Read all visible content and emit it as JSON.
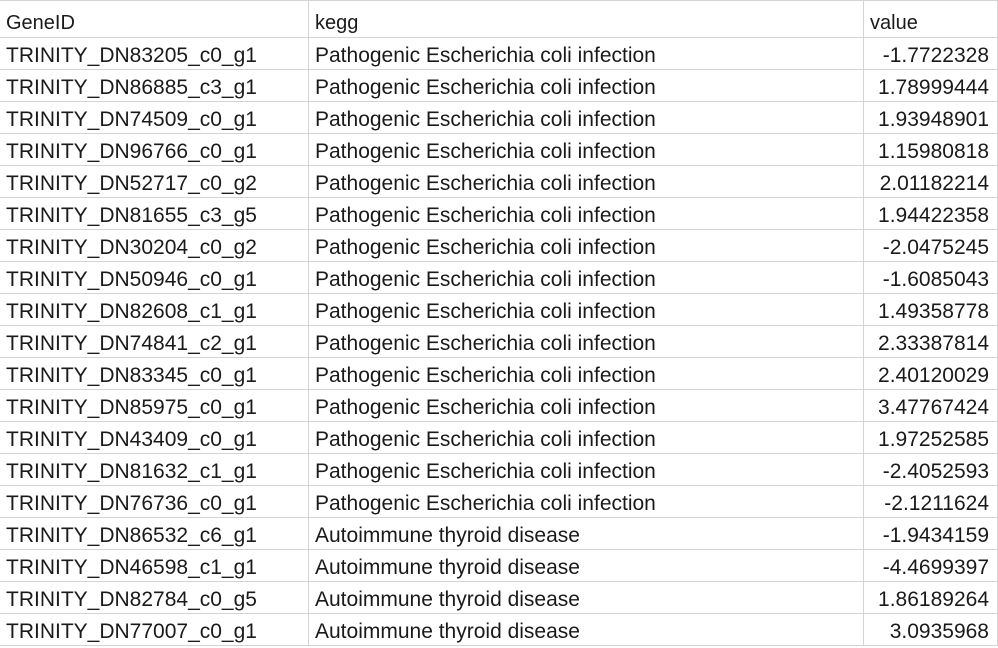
{
  "headers": {
    "gene_id": "GeneID",
    "kegg": "kegg",
    "value": "value"
  },
  "rows": [
    {
      "gene_id": "TRINITY_DN83205_c0_g1",
      "kegg": "Pathogenic Escherichia coli infection",
      "value": "-1.7722328"
    },
    {
      "gene_id": "TRINITY_DN86885_c3_g1",
      "kegg": "Pathogenic Escherichia coli infection",
      "value": "1.78999444"
    },
    {
      "gene_id": "TRINITY_DN74509_c0_g1",
      "kegg": "Pathogenic Escherichia coli infection",
      "value": "1.93948901"
    },
    {
      "gene_id": "TRINITY_DN96766_c0_g1",
      "kegg": "Pathogenic Escherichia coli infection",
      "value": "1.15980818"
    },
    {
      "gene_id": "TRINITY_DN52717_c0_g2",
      "kegg": "Pathogenic Escherichia coli infection",
      "value": "2.01182214"
    },
    {
      "gene_id": "TRINITY_DN81655_c3_g5",
      "kegg": "Pathogenic Escherichia coli infection",
      "value": "1.94422358"
    },
    {
      "gene_id": "TRINITY_DN30204_c0_g2",
      "kegg": "Pathogenic Escherichia coli infection",
      "value": "-2.0475245"
    },
    {
      "gene_id": "TRINITY_DN50946_c0_g1",
      "kegg": "Pathogenic Escherichia coli infection",
      "value": "-1.6085043"
    },
    {
      "gene_id": "TRINITY_DN82608_c1_g1",
      "kegg": "Pathogenic Escherichia coli infection",
      "value": "1.49358778"
    },
    {
      "gene_id": "TRINITY_DN74841_c2_g1",
      "kegg": "Pathogenic Escherichia coli infection",
      "value": "2.33387814"
    },
    {
      "gene_id": "TRINITY_DN83345_c0_g1",
      "kegg": "Pathogenic Escherichia coli infection",
      "value": "2.40120029"
    },
    {
      "gene_id": "TRINITY_DN85975_c0_g1",
      "kegg": "Pathogenic Escherichia coli infection",
      "value": "3.47767424"
    },
    {
      "gene_id": "TRINITY_DN43409_c0_g1",
      "kegg": "Pathogenic Escherichia coli infection",
      "value": "1.97252585"
    },
    {
      "gene_id": "TRINITY_DN81632_c1_g1",
      "kegg": "Pathogenic Escherichia coli infection",
      "value": "-2.4052593"
    },
    {
      "gene_id": "TRINITY_DN76736_c0_g1",
      "kegg": "Pathogenic Escherichia coli infection",
      "value": "-2.1211624"
    },
    {
      "gene_id": "TRINITY_DN86532_c6_g1",
      "kegg": "Autoimmune thyroid disease",
      "value": "-1.9434159"
    },
    {
      "gene_id": "TRINITY_DN46598_c1_g1",
      "kegg": "Autoimmune thyroid disease",
      "value": "-4.4699397"
    },
    {
      "gene_id": "TRINITY_DN82784_c0_g5",
      "kegg": "Autoimmune thyroid disease",
      "value": "1.86189264"
    },
    {
      "gene_id": "TRINITY_DN77007_c0_g1",
      "kegg": "Autoimmune thyroid disease",
      "value": "3.0935968"
    }
  ]
}
